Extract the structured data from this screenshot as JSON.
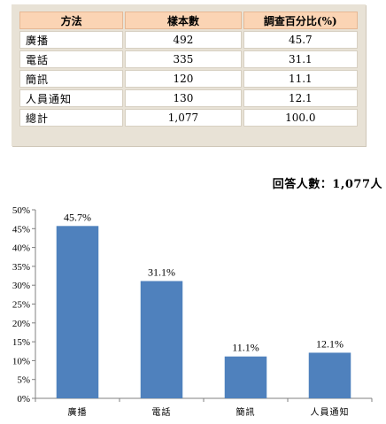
{
  "table": {
    "headers": [
      "方法",
      "樣本數",
      "調查百分比(%)"
    ],
    "rows": [
      [
        "廣播",
        "492",
        "45.7"
      ],
      [
        "電話",
        "335",
        "31.1"
      ],
      [
        "簡訊",
        "120",
        "11.1"
      ],
      [
        "人員通知",
        "130",
        "12.1"
      ],
      [
        "總計",
        "1,077",
        "100.0"
      ]
    ]
  },
  "respondents_note": "回答人數：1,077人",
  "chart_data": {
    "type": "bar",
    "categories": [
      "廣播",
      "電話",
      "簡訊",
      "人員通知"
    ],
    "values": [
      45.7,
      31.1,
      11.1,
      12.1
    ],
    "data_labels": [
      "45.7%",
      "31.1%",
      "11.1%",
      "12.1%"
    ],
    "title": "",
    "xlabel": "",
    "ylabel": "",
    "ylim": [
      0,
      50
    ],
    "yticks": [
      0,
      5,
      10,
      15,
      20,
      25,
      30,
      35,
      40,
      45,
      50
    ],
    "ytick_labels": [
      "0%",
      "5%",
      "10%",
      "15%",
      "20%",
      "25%",
      "30%",
      "35%",
      "40%",
      "45%",
      "50%"
    ],
    "grid": false,
    "legend": "none",
    "bar_color": "#4f81bd"
  }
}
